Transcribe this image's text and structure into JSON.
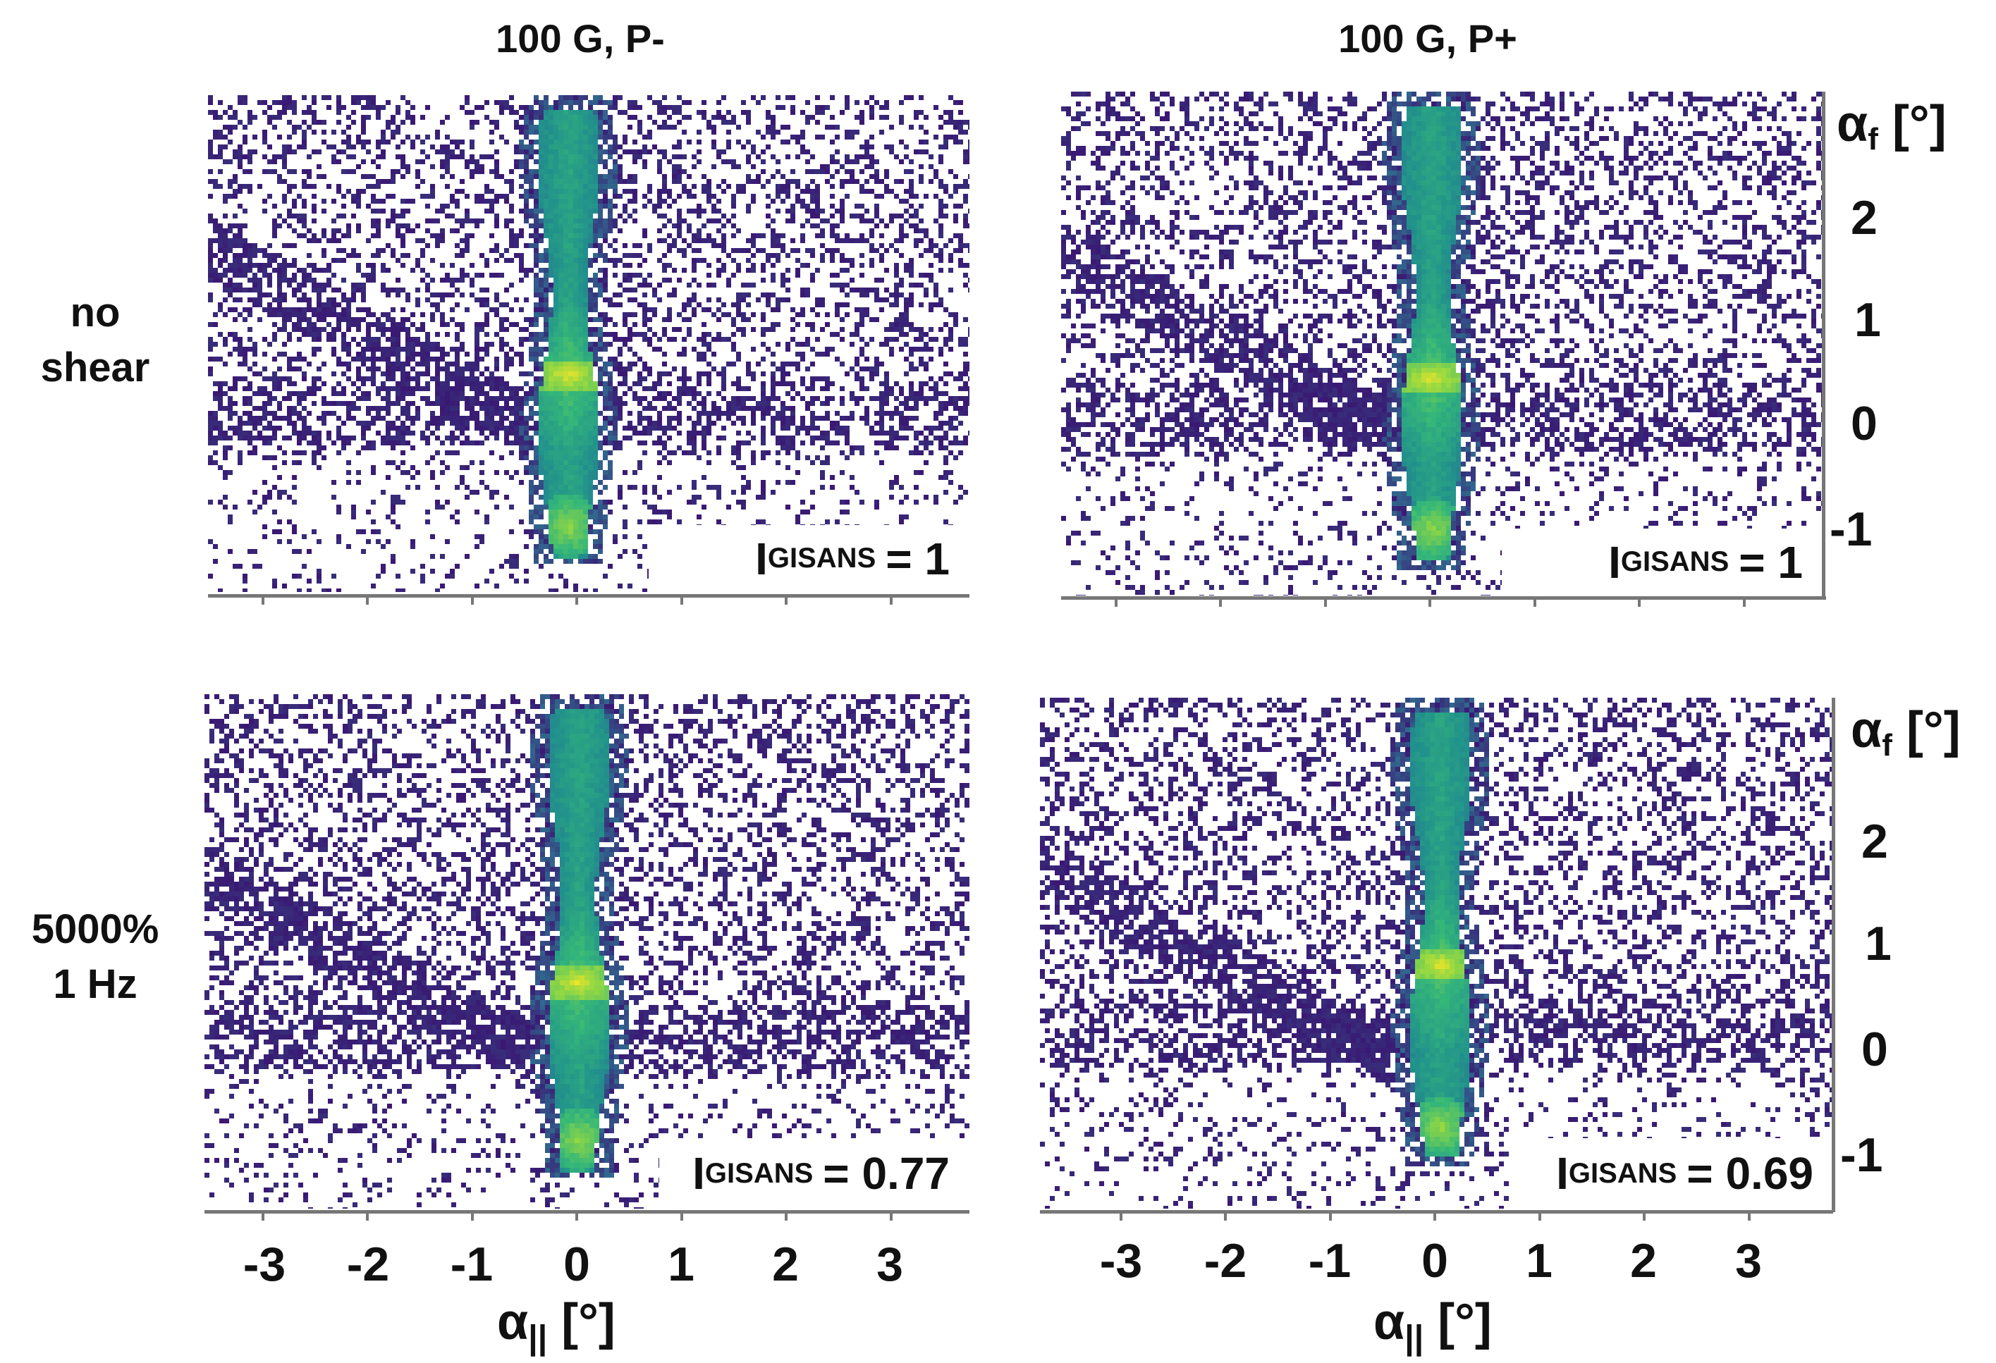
{
  "chart_data": {
    "type": "heatmap",
    "colormap": [
      "#3b0f70",
      "#31688e",
      "#21918c",
      "#35b779",
      "#90d743",
      "#fde725"
    ],
    "column_titles": [
      "100 G, P-",
      "100 G, P+"
    ],
    "row_labels": [
      [
        "no",
        "shear"
      ],
      [
        "5000%",
        "1 Hz"
      ]
    ],
    "xlabel": "α",
    "xlabel_sub": "||",
    "xlabel_unit": " [°]",
    "ylabel": "α",
    "ylabel_sub": "f",
    "ylabel_unit": " [°]",
    "xlim": [
      -3.6,
      3.7
    ],
    "ylim": [
      -1.35,
      3.25
    ],
    "xticks": [
      "-3",
      "-2",
      "-1",
      "0",
      "1",
      "2",
      "3"
    ],
    "yticks": [
      "2",
      "1",
      "0",
      "-1"
    ],
    "intensity_label": "I",
    "intensity_sub": "GISANS",
    "panels": [
      {
        "row": 0,
        "col": 0,
        "intensity": "1",
        "specular_peak_y": 0.45,
        "direct_beam_y": -1.0,
        "streak_x": -0.1
      },
      {
        "row": 0,
        "col": 1,
        "intensity": "1",
        "specular_peak_y": 0.45,
        "direct_beam_y": -1.0,
        "streak_x": 0.0
      },
      {
        "row": 1,
        "col": 0,
        "intensity": "0.77",
        "specular_peak_y": 0.6,
        "direct_beam_y": -0.9,
        "streak_x": 0.0
      },
      {
        "row": 1,
        "col": 1,
        "intensity": "0.69",
        "specular_peak_y": 0.7,
        "direct_beam_y": -0.85,
        "streak_x": 0.0
      }
    ]
  }
}
